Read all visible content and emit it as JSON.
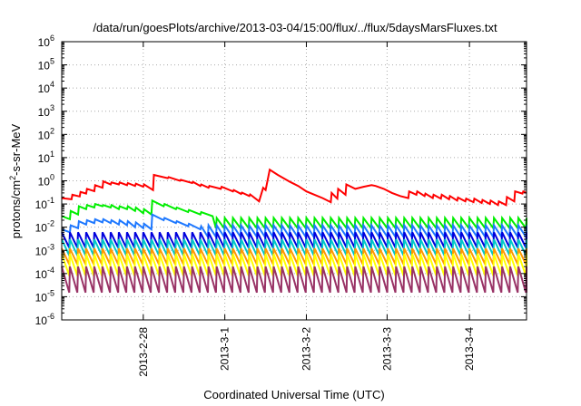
{
  "chart_data": {
    "type": "line",
    "title": "/data/run/goesPlots/archive/2013-03-04/15:00/flux/../flux/5daysMarsFluxes.txt",
    "xlabel": "Coordinated Universal Time (UTC)",
    "ylabel_base": "protons/cm",
    "ylabel_sup": "2",
    "ylabel_rest": "-s-sr-MeV",
    "yscale": "log",
    "ylim": [
      1e-06,
      1000000.0
    ],
    "xlim": [
      0,
      5.7
    ],
    "grid": true,
    "y_ticks": [
      {
        "exp": -6,
        "base": "10",
        "sup": "-6"
      },
      {
        "exp": -5,
        "base": "10",
        "sup": "-5"
      },
      {
        "exp": -4,
        "base": "10",
        "sup": "-4"
      },
      {
        "exp": -3,
        "base": "10",
        "sup": "-3"
      },
      {
        "exp": -2,
        "base": "10",
        "sup": "-2"
      },
      {
        "exp": -1,
        "base": "10",
        "sup": "-1"
      },
      {
        "exp": 0,
        "base": "10",
        "sup": "0"
      },
      {
        "exp": 1,
        "base": "10",
        "sup": "1"
      },
      {
        "exp": 2,
        "base": "10",
        "sup": "2"
      },
      {
        "exp": 3,
        "base": "10",
        "sup": "3"
      },
      {
        "exp": 4,
        "base": "10",
        "sup": "4"
      },
      {
        "exp": 5,
        "base": "10",
        "sup": "5"
      },
      {
        "exp": 6,
        "base": "10",
        "sup": "6"
      }
    ],
    "x_ticks": [
      {
        "pos": 1,
        "label": "2013-2-28"
      },
      {
        "pos": 2,
        "label": "2013-3-1"
      },
      {
        "pos": 3,
        "label": "2013-3-2"
      },
      {
        "pos": 3.99,
        "label": "2013-3-3"
      },
      {
        "pos": 5,
        "label": "2013-3-4"
      }
    ],
    "series": [
      {
        "color": "#ff0000",
        "points": [
          [
            0,
            0.18
          ],
          [
            0.12,
            0.16
          ],
          [
            0.13,
            0.25
          ],
          [
            0.22,
            0.21
          ],
          [
            0.23,
            0.33
          ],
          [
            0.3,
            0.28
          ],
          [
            0.31,
            0.45
          ],
          [
            0.4,
            0.36
          ],
          [
            0.41,
            0.65
          ],
          [
            0.5,
            0.5
          ],
          [
            0.51,
            0.95
          ],
          [
            0.6,
            0.7
          ],
          [
            0.61,
            0.85
          ],
          [
            0.7,
            0.7
          ],
          [
            0.71,
            0.85
          ],
          [
            0.8,
            0.65
          ],
          [
            0.81,
            0.8
          ],
          [
            0.9,
            0.6
          ],
          [
            0.91,
            0.75
          ],
          [
            1,
            0.55
          ],
          [
            1.01,
            0.7
          ],
          [
            1.12,
            0.4
          ],
          [
            1.13,
            1.8
          ],
          [
            1.3,
            1.3
          ],
          [
            1.31,
            1.45
          ],
          [
            1.45,
            1.0
          ],
          [
            1.46,
            1.1
          ],
          [
            1.6,
            0.8
          ],
          [
            1.61,
            0.9
          ],
          [
            1.7,
            0.6
          ],
          [
            1.71,
            0.7
          ],
          [
            1.8,
            0.5
          ],
          [
            1.81,
            0.6
          ],
          [
            1.95,
            0.45
          ],
          [
            1.96,
            0.55
          ],
          [
            2.1,
            0.35
          ],
          [
            2.11,
            0.4
          ],
          [
            2.2,
            0.27
          ],
          [
            2.21,
            0.31
          ],
          [
            2.3,
            0.22
          ],
          [
            2.31,
            0.26
          ],
          [
            2.42,
            0.13
          ],
          [
            2.47,
            0.5
          ],
          [
            2.5,
            0.4
          ],
          [
            2.55,
            3.0
          ],
          [
            2.65,
            1.8
          ],
          [
            2.8,
            0.9
          ],
          [
            2.9,
            0.6
          ],
          [
            3,
            0.35
          ],
          [
            3.1,
            0.25
          ],
          [
            3.2,
            0.18
          ],
          [
            3.3,
            0.12
          ],
          [
            3.31,
            0.3
          ],
          [
            3.38,
            0.17
          ],
          [
            3.39,
            0.45
          ],
          [
            3.48,
            0.25
          ],
          [
            3.49,
            0.7
          ],
          [
            3.6,
            0.45
          ],
          [
            3.7,
            0.55
          ],
          [
            3.8,
            0.65
          ],
          [
            3.85,
            0.6
          ],
          [
            3.95,
            0.45
          ],
          [
            4.05,
            0.3
          ],
          [
            4.15,
            0.22
          ],
          [
            4.25,
            0.18
          ],
          [
            4.26,
            0.35
          ],
          [
            4.35,
            0.25
          ],
          [
            4.36,
            0.35
          ],
          [
            4.45,
            0.22
          ],
          [
            4.46,
            0.28
          ],
          [
            4.55,
            0.18
          ],
          [
            4.56,
            0.25
          ],
          [
            4.65,
            0.17
          ],
          [
            4.66,
            0.25
          ],
          [
            4.75,
            0.16
          ],
          [
            4.76,
            0.22
          ],
          [
            4.85,
            0.14
          ],
          [
            4.86,
            0.19
          ],
          [
            4.95,
            0.13
          ],
          [
            4.96,
            0.17
          ],
          [
            5.05,
            0.12
          ],
          [
            5.06,
            0.17
          ],
          [
            5.15,
            0.11
          ],
          [
            5.16,
            0.15
          ],
          [
            5.25,
            0.1
          ],
          [
            5.26,
            0.14
          ],
          [
            5.35,
            0.09
          ],
          [
            5.36,
            0.13
          ],
          [
            5.45,
            0.09
          ],
          [
            5.46,
            0.2
          ],
          [
            5.55,
            0.13
          ],
          [
            5.56,
            0.35
          ],
          [
            5.65,
            0.28
          ],
          [
            5.66,
            0.35
          ],
          [
            5.7,
            0.3
          ]
        ]
      },
      {
        "color": "#00ee00",
        "sawtooth": {
          "period": 0.1,
          "bottom": 0.009,
          "top": 0.025,
          "start": 0,
          "end": 5.7
        },
        "overrides": [
          [
            0,
            0.03
          ],
          [
            0.1,
            0.022
          ],
          [
            0.11,
            0.05
          ],
          [
            0.2,
            0.035
          ],
          [
            0.21,
            0.08
          ],
          [
            0.3,
            0.06
          ],
          [
            0.31,
            0.09
          ],
          [
            0.4,
            0.07
          ],
          [
            0.41,
            0.1
          ],
          [
            0.5,
            0.08
          ],
          [
            0.51,
            0.09
          ],
          [
            0.6,
            0.07
          ],
          [
            0.61,
            0.09
          ],
          [
            0.7,
            0.06
          ],
          [
            0.71,
            0.08
          ],
          [
            0.8,
            0.06
          ],
          [
            0.81,
            0.08
          ],
          [
            0.9,
            0.05
          ],
          [
            0.91,
            0.07
          ],
          [
            1,
            0.04
          ],
          [
            1.01,
            0.06
          ],
          [
            1.1,
            0.035
          ],
          [
            1.11,
            0.14
          ],
          [
            1.25,
            0.08
          ],
          [
            1.26,
            0.1
          ],
          [
            1.4,
            0.06
          ],
          [
            1.41,
            0.07
          ],
          [
            1.55,
            0.045
          ],
          [
            1.56,
            0.055
          ],
          [
            1.7,
            0.035
          ],
          [
            1.71,
            0.045
          ],
          [
            1.85,
            0.03
          ]
        ]
      },
      {
        "color": "#1e78ff",
        "sawtooth": {
          "period": 0.1,
          "bottom": 0.0038,
          "top": 0.012,
          "start": 0,
          "end": 5.7
        },
        "overrides": [
          [
            0,
            0.008
          ],
          [
            0.1,
            0.006
          ],
          [
            0.11,
            0.012
          ],
          [
            0.2,
            0.009
          ],
          [
            0.21,
            0.018
          ],
          [
            0.3,
            0.013
          ],
          [
            0.31,
            0.02
          ],
          [
            0.4,
            0.015
          ],
          [
            0.41,
            0.022
          ],
          [
            0.5,
            0.016
          ],
          [
            0.51,
            0.022
          ],
          [
            0.6,
            0.015
          ],
          [
            0.61,
            0.02
          ],
          [
            0.7,
            0.013
          ],
          [
            0.71,
            0.02
          ],
          [
            0.8,
            0.012
          ],
          [
            0.81,
            0.018
          ],
          [
            0.9,
            0.01
          ],
          [
            0.91,
            0.016
          ],
          [
            1,
            0.009
          ],
          [
            1.01,
            0.014
          ],
          [
            1.1,
            0.008
          ],
          [
            1.11,
            0.035
          ],
          [
            1.25,
            0.02
          ],
          [
            1.26,
            0.025
          ],
          [
            1.4,
            0.015
          ],
          [
            1.41,
            0.018
          ],
          [
            1.55,
            0.011
          ],
          [
            1.56,
            0.014
          ],
          [
            1.7,
            0.008
          ],
          [
            1.71,
            0.011
          ]
        ]
      },
      {
        "color": "#0000dd",
        "sawtooth": {
          "period": 0.1,
          "bottom": 0.0013,
          "top": 0.006,
          "start": 0,
          "end": 5.7
        }
      },
      {
        "color": "#00c8c8",
        "sawtooth": {
          "period": 0.1,
          "bottom": 0.0006,
          "top": 0.003,
          "start": 0,
          "end": 5.7
        }
      },
      {
        "color": "#ff9900",
        "sawtooth": {
          "period": 0.1,
          "bottom": 0.00025,
          "top": 0.0012,
          "start": 0,
          "end": 5.7
        }
      },
      {
        "color": "#ffff00",
        "sawtooth": {
          "period": 0.1,
          "bottom": 8e-05,
          "top": 0.0007,
          "start": 0,
          "end": 5.7
        }
      },
      {
        "color": "#993366",
        "sawtooth": {
          "period": 0.1,
          "bottom": 1.5e-05,
          "top": 0.0002,
          "start": 0,
          "end": 5.7
        }
      }
    ]
  }
}
